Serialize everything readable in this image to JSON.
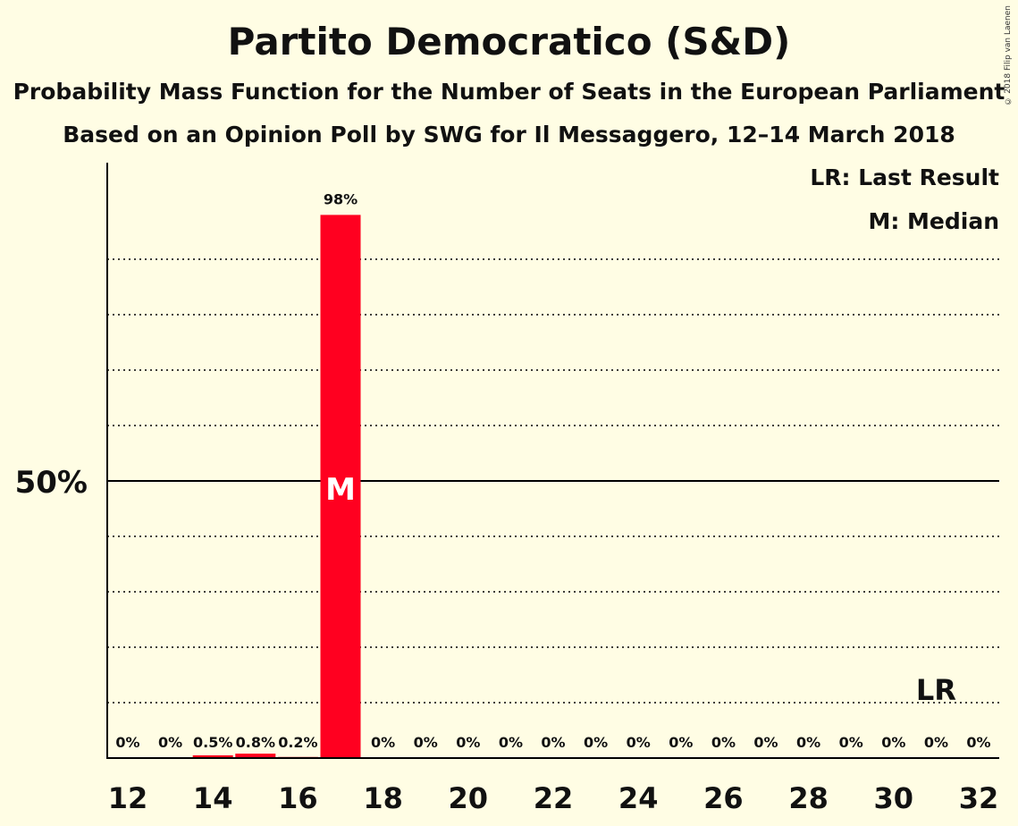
{
  "chart_data": {
    "type": "bar",
    "title": "Partito Democratico (S&D)",
    "subtitle": "Probability Mass Function for the Number of Seats in the European Parliament",
    "subtitle2": "Based on an Opinion Poll by SWG for Il Messaggero, 12–14 March 2018",
    "copyright": "© 2018 Filip van Laenen",
    "legend": [
      "LR: Last Result",
      "M: Median"
    ],
    "legend_position": "top-right",
    "x": [
      12,
      13,
      14,
      15,
      16,
      17,
      18,
      19,
      20,
      21,
      22,
      23,
      24,
      25,
      26,
      27,
      28,
      29,
      30,
      31,
      32
    ],
    "values": [
      0,
      0,
      0.5,
      0.8,
      0.2,
      98,
      0,
      0,
      0,
      0,
      0,
      0,
      0,
      0,
      0,
      0,
      0,
      0,
      0,
      0,
      0
    ],
    "data_labels": [
      "0%",
      "0%",
      "0.5%",
      "0.8%",
      "0.2%",
      "98%",
      "0%",
      "0%",
      "0%",
      "0%",
      "0%",
      "0%",
      "0%",
      "0%",
      "0%",
      "0%",
      "0%",
      "0%",
      "0%",
      "0%",
      "0%"
    ],
    "x_tick_labels": [
      "12",
      "14",
      "16",
      "18",
      "20",
      "22",
      "24",
      "26",
      "28",
      "30",
      "32"
    ],
    "y_tick_label": "50%",
    "ylim": [
      0,
      107
    ],
    "grid": "dotted every 10%, solid at 50%",
    "median_seat": 17,
    "median_label": "M",
    "last_result_seat": 31,
    "last_result_label": "LR",
    "bar_color": "#FF0020"
  }
}
